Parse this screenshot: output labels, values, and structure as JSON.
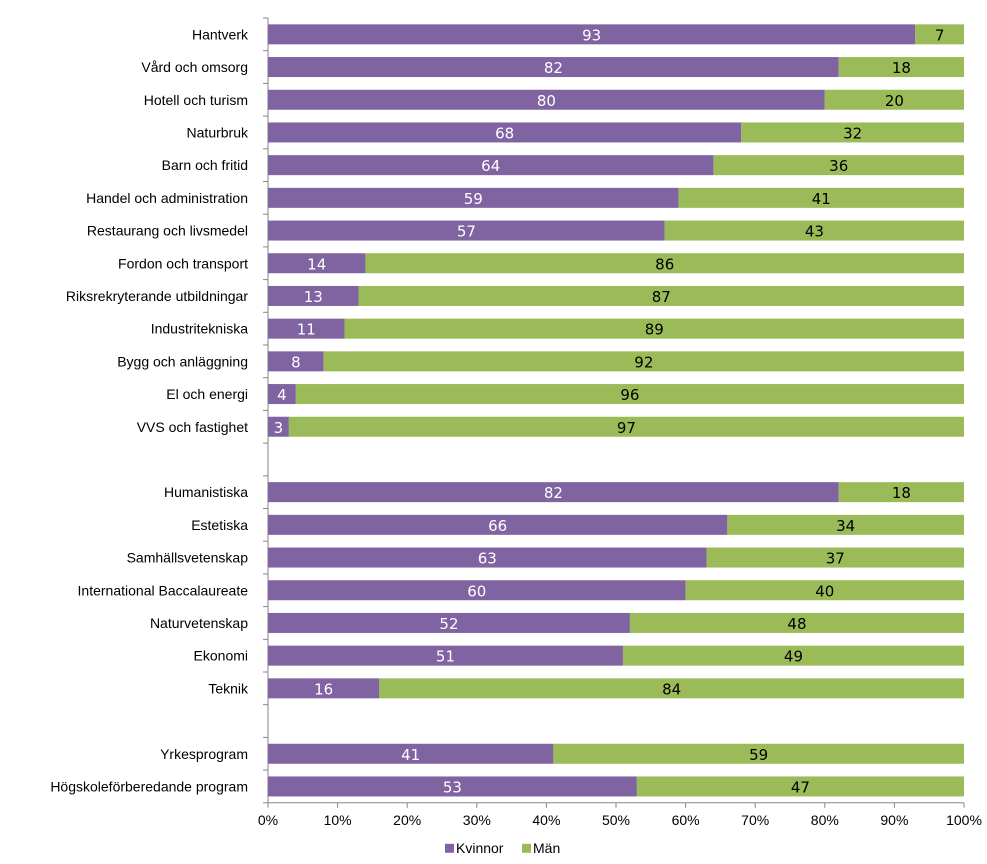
{
  "chart_data": {
    "type": "bar",
    "orientation": "horizontal",
    "stacked": true,
    "categories": [
      "Hantverk",
      "Vård och omsorg",
      "Hotell och turism",
      "Naturbruk",
      "Barn och fritid",
      "Handel och administration",
      "Restaurang och livsmedel",
      "Fordon och transport",
      "Riksrekryterande utbildningar",
      "Industritekniska",
      "Bygg och anläggning",
      "El och energi",
      "VVS och fastighet",
      "",
      "Humanistiska",
      "Estetiska",
      "Samhällsvetenskap",
      "International Baccalaureate",
      "Naturvetenskap",
      "Ekonomi",
      "Teknik",
      "",
      "Yrkesprogram",
      "Högskoleförberedande program"
    ],
    "series": [
      {
        "name": "Kvinnor",
        "color": "#8064a2",
        "values": [
          93,
          82,
          80,
          68,
          64,
          59,
          57,
          14,
          13,
          11,
          8,
          4,
          3,
          null,
          82,
          66,
          63,
          60,
          52,
          51,
          16,
          null,
          41,
          53
        ]
      },
      {
        "name": "Män",
        "color": "#9bbb59",
        "values": [
          7,
          18,
          20,
          32,
          36,
          41,
          43,
          86,
          87,
          89,
          92,
          96,
          97,
          null,
          18,
          34,
          37,
          40,
          48,
          49,
          84,
          null,
          59,
          47
        ]
      }
    ],
    "xlim": [
      0,
      100
    ],
    "x_ticks": [
      "0%",
      "10%",
      "20%",
      "30%",
      "40%",
      "50%",
      "60%",
      "70%",
      "80%",
      "90%",
      "100%"
    ],
    "title": "",
    "xlabel": "",
    "ylabel": "",
    "grid": false,
    "legend": "bottom"
  }
}
